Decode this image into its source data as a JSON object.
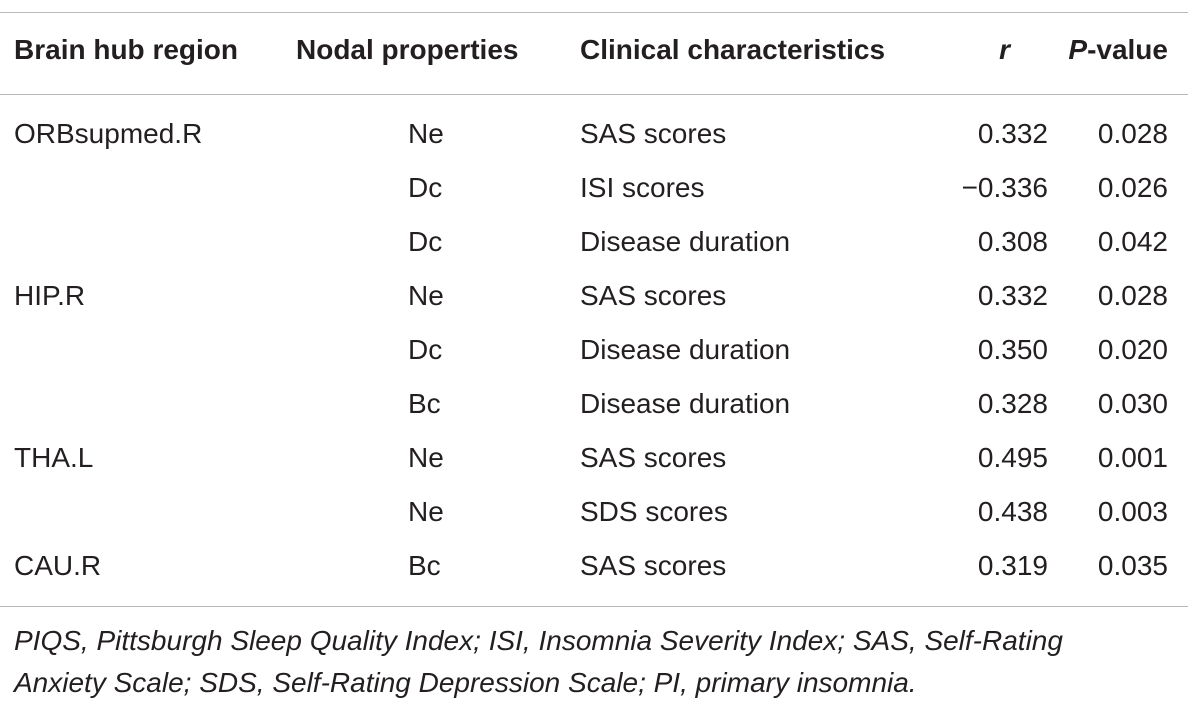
{
  "table": {
    "headers": {
      "region": "Brain hub region",
      "nodal": "Nodal properties",
      "clinical": "Clinical characteristics",
      "r": "r",
      "p_italic": "P",
      "p_suffix": "-value"
    },
    "rows": [
      {
        "region": "ORBsupmed.R",
        "nodal": "Ne",
        "clinical": "SAS scores",
        "r": "0.332",
        "p": "0.028"
      },
      {
        "region": "",
        "nodal": "Dc",
        "clinical": "ISI scores",
        "r": "−0.336",
        "p": "0.026"
      },
      {
        "region": "",
        "nodal": "Dc",
        "clinical": "Disease duration",
        "r": "0.308",
        "p": "0.042"
      },
      {
        "region": "HIP.R",
        "nodal": "Ne",
        "clinical": "SAS scores",
        "r": "0.332",
        "p": "0.028"
      },
      {
        "region": "",
        "nodal": "Dc",
        "clinical": "Disease duration",
        "r": "0.350",
        "p": "0.020"
      },
      {
        "region": "",
        "nodal": "Bc",
        "clinical": "Disease duration",
        "r": "0.328",
        "p": "0.030"
      },
      {
        "region": "THA.L",
        "nodal": "Ne",
        "clinical": "SAS scores",
        "r": "0.495",
        "p": "0.001"
      },
      {
        "region": "",
        "nodal": "Ne",
        "clinical": "SDS scores",
        "r": "0.438",
        "p": "0.003"
      },
      {
        "region": "CAU.R",
        "nodal": "Bc",
        "clinical": "SAS scores",
        "r": "0.319",
        "p": "0.035"
      }
    ],
    "footnote_line1": "PIQS, Pittsburgh Sleep Quality Index; ISI, Insomnia Severity Index; SAS, Self-Rating",
    "footnote_line2": "Anxiety Scale; SDS, Self-Rating Depression Scale; PI, primary insomnia."
  }
}
